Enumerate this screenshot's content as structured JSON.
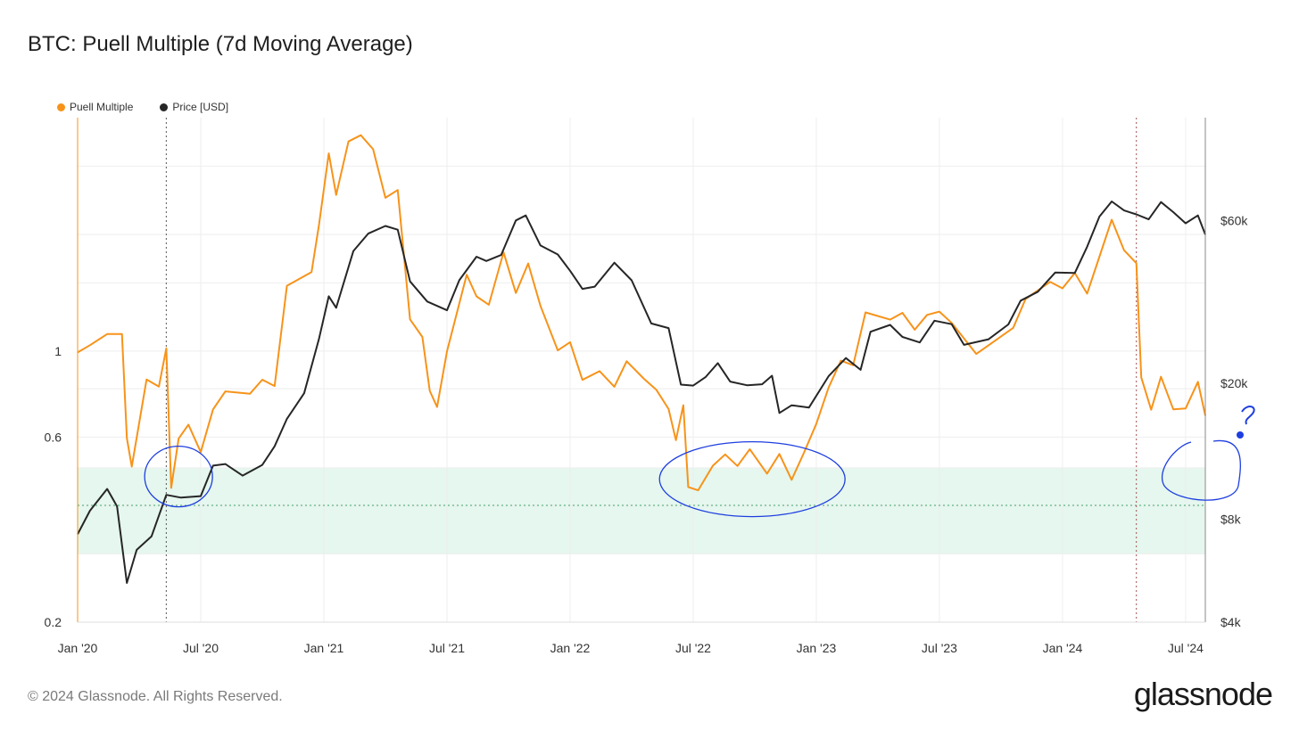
{
  "title": "BTC: Puell Multiple (7d Moving Average)",
  "footer": "© 2024 Glassnode. All Rights Reserved.",
  "logo_text": "glassnode",
  "chart_data": {
    "type": "line",
    "title": "BTC: Puell Multiple (7d Moving Average)",
    "x_range": [
      2020.0,
      2024.58
    ],
    "x_ticks": [
      {
        "label": "Jan '20",
        "t": 2020.0
      },
      {
        "label": "Jul '20",
        "t": 2020.5
      },
      {
        "label": "Jan '21",
        "t": 2021.0
      },
      {
        "label": "Jul '21",
        "t": 2021.5
      },
      {
        "label": "Jan '22",
        "t": 2022.0
      },
      {
        "label": "Jul '22",
        "t": 2022.5
      },
      {
        "label": "Jan '23",
        "t": 2023.0
      },
      {
        "label": "Jul '23",
        "t": 2023.5
      },
      {
        "label": "Jan '24",
        "t": 2024.0
      },
      {
        "label": "Jul '24",
        "t": 2024.5
      }
    ],
    "left_axis": {
      "scale": "log",
      "range": [
        0.2,
        4.0
      ],
      "ticks": [
        {
          "label": "0.2",
          "v": 0.2
        },
        {
          "label": "0.6",
          "v": 0.6
        },
        {
          "label": "1",
          "v": 1.0
        }
      ]
    },
    "right_axis": {
      "scale": "log",
      "range": [
        4000,
        120000
      ],
      "ticks": [
        {
          "label": "$4k",
          "v": 4000
        },
        {
          "label": "$8k",
          "v": 8000
        },
        {
          "label": "$20k",
          "v": 20000
        },
        {
          "label": "$60k",
          "v": 60000
        }
      ]
    },
    "halving_lines": [
      2020.36,
      2024.3
    ],
    "threshold_line": 0.4,
    "green_band": [
      0.3,
      0.5
    ],
    "series": [
      {
        "name": "Puell Multiple",
        "color": "#f7931a",
        "axis": "left",
        "points": [
          [
            2020.0,
            0.98
          ],
          [
            2020.05,
            1.05
          ],
          [
            2020.12,
            1.12
          ],
          [
            2020.18,
            1.1
          ],
          [
            2020.2,
            0.6
          ],
          [
            2020.22,
            0.5
          ],
          [
            2020.28,
            0.85
          ],
          [
            2020.33,
            0.8
          ],
          [
            2020.36,
            1.0
          ],
          [
            2020.38,
            0.45
          ],
          [
            2020.41,
            0.6
          ],
          [
            2020.45,
            0.65
          ],
          [
            2020.5,
            0.55
          ],
          [
            2020.55,
            0.7
          ],
          [
            2020.6,
            0.8
          ],
          [
            2020.7,
            0.78
          ],
          [
            2020.75,
            0.85
          ],
          [
            2020.8,
            0.8
          ],
          [
            2020.85,
            1.5
          ],
          [
            2020.95,
            1.6
          ],
          [
            2020.98,
            2.1
          ],
          [
            2021.02,
            3.2
          ],
          [
            2021.05,
            2.5
          ],
          [
            2021.1,
            3.5
          ],
          [
            2021.15,
            3.6
          ],
          [
            2021.2,
            3.3
          ],
          [
            2021.25,
            2.5
          ],
          [
            2021.3,
            2.6
          ],
          [
            2021.35,
            1.2
          ],
          [
            2021.4,
            1.1
          ],
          [
            2021.43,
            0.8
          ],
          [
            2021.46,
            0.72
          ],
          [
            2021.5,
            1.0
          ],
          [
            2021.58,
            1.6
          ],
          [
            2021.62,
            1.4
          ],
          [
            2021.67,
            1.3
          ],
          [
            2021.73,
            1.8
          ],
          [
            2021.78,
            1.4
          ],
          [
            2021.83,
            1.7
          ],
          [
            2021.88,
            1.3
          ],
          [
            2021.95,
            1.0
          ],
          [
            2022.0,
            1.05
          ],
          [
            2022.05,
            0.85
          ],
          [
            2022.12,
            0.9
          ],
          [
            2022.18,
            0.8
          ],
          [
            2022.23,
            0.95
          ],
          [
            2022.3,
            0.85
          ],
          [
            2022.35,
            0.8
          ],
          [
            2022.4,
            0.7
          ],
          [
            2022.43,
            0.58
          ],
          [
            2022.46,
            0.72
          ],
          [
            2022.48,
            0.45
          ],
          [
            2022.52,
            0.44
          ],
          [
            2022.58,
            0.5
          ],
          [
            2022.63,
            0.55
          ],
          [
            2022.68,
            0.5
          ],
          [
            2022.73,
            0.56
          ],
          [
            2022.8,
            0.48
          ],
          [
            2022.85,
            0.55
          ],
          [
            2022.9,
            0.46
          ],
          [
            2022.95,
            0.55
          ],
          [
            2023.0,
            0.65
          ],
          [
            2023.05,
            0.8
          ],
          [
            2023.1,
            0.95
          ],
          [
            2023.15,
            0.92
          ],
          [
            2023.2,
            1.25
          ],
          [
            2023.3,
            1.2
          ],
          [
            2023.35,
            1.25
          ],
          [
            2023.4,
            1.15
          ],
          [
            2023.45,
            1.22
          ],
          [
            2023.5,
            1.28
          ],
          [
            2023.55,
            1.18
          ],
          [
            2023.65,
            1.0
          ],
          [
            2023.75,
            1.1
          ],
          [
            2023.8,
            1.15
          ],
          [
            2023.85,
            1.35
          ],
          [
            2023.95,
            1.5
          ],
          [
            2024.0,
            1.45
          ],
          [
            2024.05,
            1.6
          ],
          [
            2024.1,
            1.4
          ],
          [
            2024.15,
            1.75
          ],
          [
            2024.2,
            2.2
          ],
          [
            2024.25,
            1.8
          ],
          [
            2024.3,
            1.7
          ],
          [
            2024.32,
            0.85
          ],
          [
            2024.36,
            0.7
          ],
          [
            2024.4,
            0.85
          ],
          [
            2024.45,
            0.72
          ],
          [
            2024.5,
            0.7
          ],
          [
            2024.55,
            0.84
          ],
          [
            2024.58,
            0.68
          ]
        ]
      },
      {
        "name": "Price [USD]",
        "color": "#262626",
        "axis": "right",
        "points": [
          [
            2020.0,
            7200
          ],
          [
            2020.05,
            8600
          ],
          [
            2020.12,
            10000
          ],
          [
            2020.16,
            8800
          ],
          [
            2020.2,
            5200
          ],
          [
            2020.24,
            6500
          ],
          [
            2020.3,
            7200
          ],
          [
            2020.36,
            9300
          ],
          [
            2020.42,
            9200
          ],
          [
            2020.5,
            9300
          ],
          [
            2020.55,
            11500
          ],
          [
            2020.6,
            11700
          ],
          [
            2020.67,
            10800
          ],
          [
            2020.75,
            11500
          ],
          [
            2020.8,
            13000
          ],
          [
            2020.85,
            16000
          ],
          [
            2020.92,
            19000
          ],
          [
            2020.98,
            27000
          ],
          [
            2021.02,
            36000
          ],
          [
            2021.05,
            33000
          ],
          [
            2021.12,
            48000
          ],
          [
            2021.18,
            55000
          ],
          [
            2021.25,
            58000
          ],
          [
            2021.3,
            56000
          ],
          [
            2021.35,
            40000
          ],
          [
            2021.42,
            35000
          ],
          [
            2021.5,
            33000
          ],
          [
            2021.55,
            40000
          ],
          [
            2021.62,
            47000
          ],
          [
            2021.66,
            45000
          ],
          [
            2021.72,
            48000
          ],
          [
            2021.78,
            60000
          ],
          [
            2021.82,
            62000
          ],
          [
            2021.88,
            50000
          ],
          [
            2021.95,
            47000
          ],
          [
            2022.0,
            43000
          ],
          [
            2022.05,
            38000
          ],
          [
            2022.1,
            38000
          ],
          [
            2022.18,
            45000
          ],
          [
            2022.25,
            40000
          ],
          [
            2022.33,
            30000
          ],
          [
            2022.4,
            29000
          ],
          [
            2022.45,
            20000
          ],
          [
            2022.5,
            19500
          ],
          [
            2022.55,
            21000
          ],
          [
            2022.6,
            23000
          ],
          [
            2022.65,
            20000
          ],
          [
            2022.72,
            19500
          ],
          [
            2022.78,
            19800
          ],
          [
            2022.82,
            21000
          ],
          [
            2022.85,
            16500
          ],
          [
            2022.9,
            17000
          ],
          [
            2022.97,
            16700
          ],
          [
            2023.05,
            21000
          ],
          [
            2023.12,
            23500
          ],
          [
            2023.18,
            22000
          ],
          [
            2023.22,
            28000
          ],
          [
            2023.3,
            29500
          ],
          [
            2023.35,
            27500
          ],
          [
            2023.42,
            26500
          ],
          [
            2023.48,
            30000
          ],
          [
            2023.55,
            29500
          ],
          [
            2023.6,
            26000
          ],
          [
            2023.7,
            26500
          ],
          [
            2023.78,
            30000
          ],
          [
            2023.83,
            35000
          ],
          [
            2023.9,
            37500
          ],
          [
            2023.97,
            43000
          ],
          [
            2024.05,
            42000
          ],
          [
            2024.1,
            50000
          ],
          [
            2024.15,
            62000
          ],
          [
            2024.2,
            68000
          ],
          [
            2024.25,
            64000
          ],
          [
            2024.3,
            63000
          ],
          [
            2024.35,
            60000
          ],
          [
            2024.4,
            68000
          ],
          [
            2024.45,
            64000
          ],
          [
            2024.5,
            58000
          ],
          [
            2024.55,
            63000
          ],
          [
            2024.58,
            55000
          ]
        ]
      }
    ],
    "annotations": [
      {
        "type": "hand-drawn-circle",
        "label": "2020 low",
        "center": [
          2020.41,
          0.48
        ]
      },
      {
        "type": "hand-drawn-circle",
        "label": "2022 low",
        "center": [
          2022.74,
          0.48
        ]
      },
      {
        "type": "hand-drawn-circle",
        "label": "2024 projection",
        "center": [
          2024.65,
          0.48
        ]
      },
      {
        "type": "question-mark",
        "text": "?"
      }
    ]
  },
  "legend": [
    {
      "label": "Puell Multiple",
      "color": "#f7931a"
    },
    {
      "label": "Price [USD]",
      "color": "#262626"
    }
  ],
  "colors": {
    "band": "#e5f7ee",
    "annotation": "#1e3ee0",
    "halving": "#a05050"
  }
}
